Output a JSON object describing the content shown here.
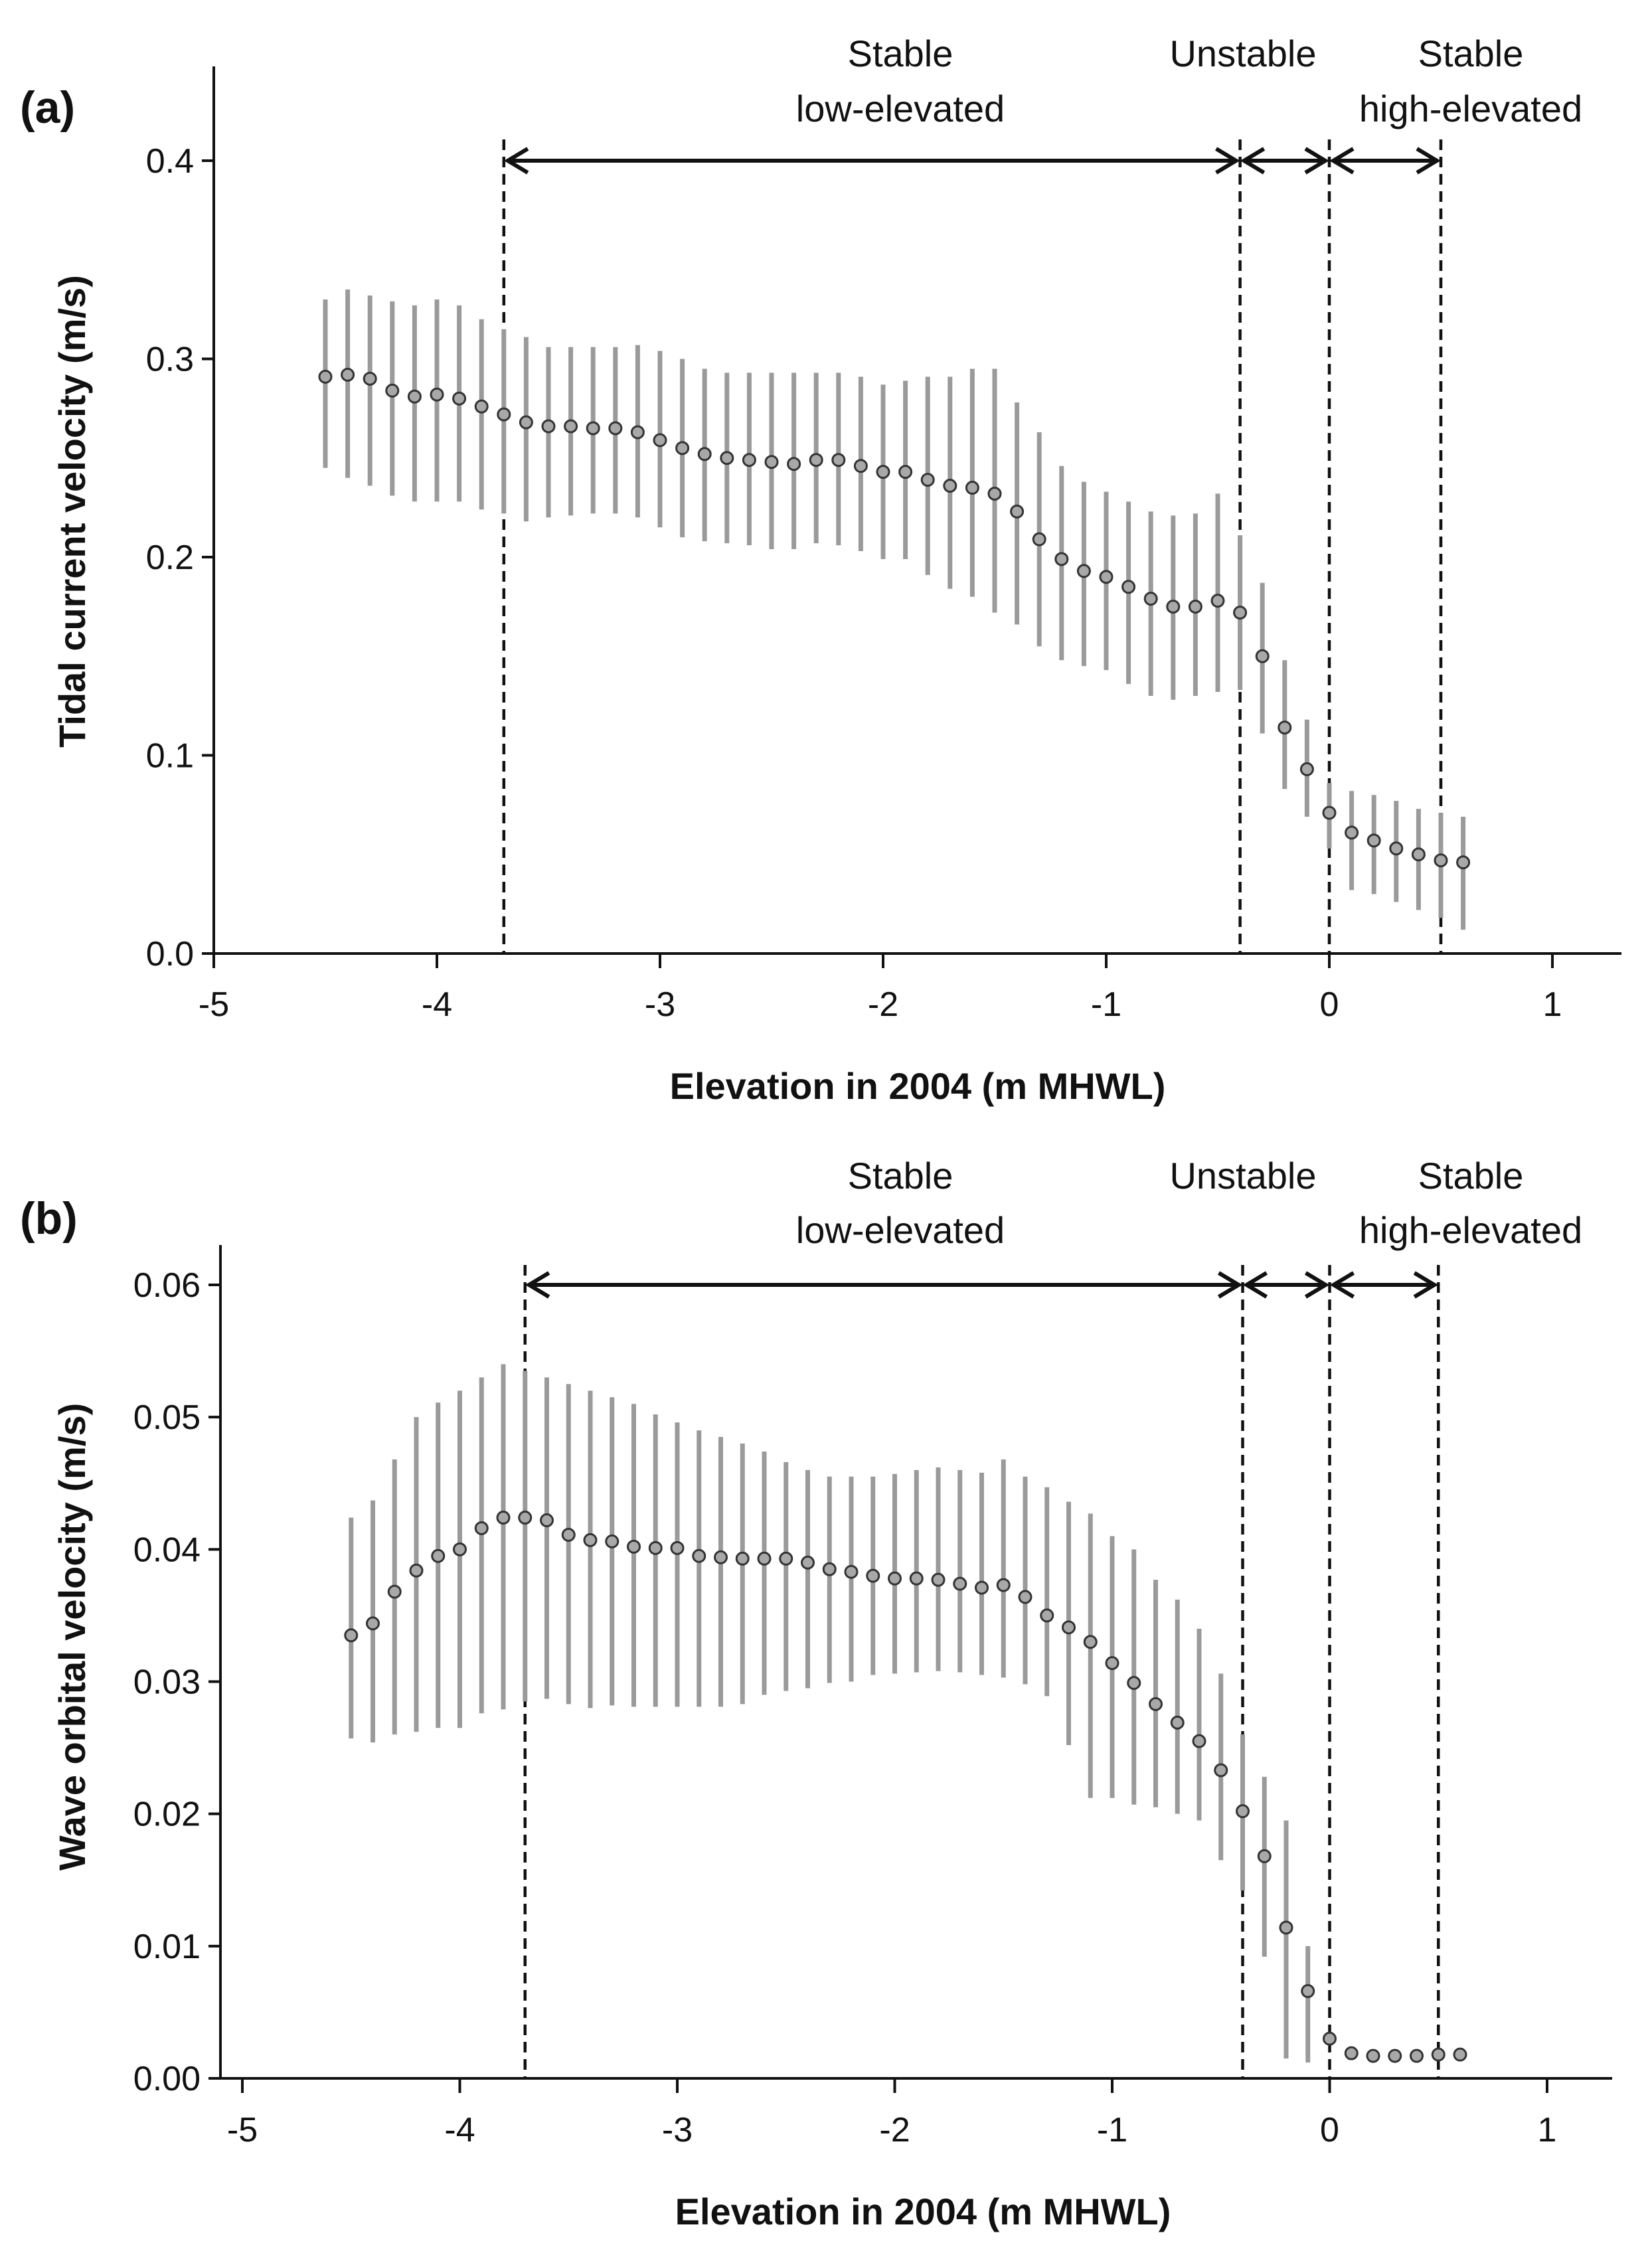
{
  "chart_data": [
    {
      "type": "scatter",
      "panel_label": "(a)",
      "xlabel": "Elevation in 2004 (m MHWL)",
      "ylabel": "Tidal current velocity (m/s)",
      "xlim": [
        -5,
        1.3
      ],
      "ylim": [
        0,
        0.44
      ],
      "x_ticks": [
        -5,
        -4,
        -3,
        -2,
        -1,
        0,
        1
      ],
      "x_tick_labels": [
        "-5",
        "-4",
        "-3",
        "-2",
        "-1",
        "0",
        "1"
      ],
      "y_ticks": [
        0,
        0.1,
        0.2,
        0.3,
        0.4
      ],
      "y_tick_labels": [
        "0.0",
        "0.1",
        "0.2",
        "0.3",
        "0.4"
      ],
      "boundaries": [
        -3.7,
        -0.4,
        0,
        0.5
      ],
      "regions": [
        {
          "label": "Stable\nlow-elevated",
          "from": -3.7,
          "to": -0.4
        },
        {
          "label": "Unstable",
          "from": -0.4,
          "to": 0
        },
        {
          "label": "Stable\nhigh-elevated",
          "from": 0,
          "to": 0.5
        }
      ],
      "x": [
        -4.5,
        -4.4,
        -4.3,
        -4.2,
        -4.1,
        -4.0,
        -3.9,
        -3.8,
        -3.7,
        -3.6,
        -3.5,
        -3.4,
        -3.3,
        -3.2,
        -3.1,
        -3.0,
        -2.9,
        -2.8,
        -2.7,
        -2.6,
        -2.5,
        -2.4,
        -2.3,
        -2.2,
        -2.1,
        -2.0,
        -1.9,
        -1.8,
        -1.7,
        -1.6,
        -1.5,
        -1.4,
        -1.3,
        -1.2,
        -1.1,
        -1.0,
        -0.9,
        -0.8,
        -0.7,
        -0.6,
        -0.5,
        -0.4,
        -0.3,
        -0.2,
        -0.1,
        0.0,
        0.1,
        0.2,
        0.3,
        0.4,
        0.5,
        0.6
      ],
      "mean": [
        0.291,
        0.292,
        0.29,
        0.284,
        0.281,
        0.282,
        0.28,
        0.276,
        0.272,
        0.268,
        0.266,
        0.266,
        0.265,
        0.265,
        0.263,
        0.259,
        0.255,
        0.252,
        0.25,
        0.249,
        0.248,
        0.247,
        0.249,
        0.249,
        0.246,
        0.243,
        0.243,
        0.239,
        0.236,
        0.235,
        0.232,
        0.223,
        0.209,
        0.199,
        0.193,
        0.19,
        0.185,
        0.179,
        0.175,
        0.175,
        0.178,
        0.172,
        0.15,
        0.114,
        0.093,
        0.071,
        0.061,
        0.057,
        0.053,
        0.05,
        0.047,
        0.046
      ],
      "upper": [
        0.33,
        0.335,
        0.332,
        0.329,
        0.327,
        0.33,
        0.327,
        0.32,
        0.315,
        0.311,
        0.306,
        0.306,
        0.306,
        0.306,
        0.307,
        0.304,
        0.3,
        0.295,
        0.293,
        0.293,
        0.293,
        0.293,
        0.293,
        0.293,
        0.291,
        0.287,
        0.289,
        0.291,
        0.291,
        0.295,
        0.295,
        0.278,
        0.263,
        0.246,
        0.238,
        0.233,
        0.228,
        0.223,
        0.221,
        0.222,
        0.232,
        0.211,
        0.187,
        0.148,
        0.118,
        0.086,
        0.082,
        0.08,
        0.077,
        0.073,
        0.071,
        0.069
      ],
      "lower": [
        0.245,
        0.24,
        0.236,
        0.231,
        0.228,
        0.228,
        0.228,
        0.224,
        0.222,
        0.218,
        0.22,
        0.221,
        0.222,
        0.222,
        0.22,
        0.215,
        0.21,
        0.208,
        0.207,
        0.206,
        0.204,
        0.204,
        0.207,
        0.206,
        0.203,
        0.199,
        0.199,
        0.191,
        0.184,
        0.18,
        0.172,
        0.166,
        0.155,
        0.148,
        0.145,
        0.143,
        0.136,
        0.13,
        0.128,
        0.13,
        0.132,
        0.133,
        0.111,
        0.083,
        0.069,
        0.053,
        0.032,
        0.03,
        0.026,
        0.022,
        0.018,
        0.012
      ]
    },
    {
      "type": "scatter",
      "panel_label": "(b)",
      "xlabel": "Elevation in 2004 (m MHWL)",
      "ylabel": "Wave orbital velocity (m/s)",
      "xlim": [
        -5,
        1.3
      ],
      "ylim": [
        0,
        0.066
      ],
      "x_ticks": [
        -5,
        -4,
        -3,
        -2,
        -1,
        0,
        1
      ],
      "x_tick_labels": [
        "-5",
        "-4",
        "-3",
        "-2",
        "-1",
        "0",
        "1"
      ],
      "y_ticks": [
        0,
        0.01,
        0.02,
        0.03,
        0.04,
        0.05,
        0.06
      ],
      "y_tick_labels": [
        "0.00",
        "0.01",
        "0.02",
        "0.03",
        "0.04",
        "0.05",
        "0.06"
      ],
      "boundaries": [
        -3.7,
        -0.4,
        0,
        0.5
      ],
      "regions": [
        {
          "label": "Stable\nlow-elevated",
          "from": -3.7,
          "to": -0.4
        },
        {
          "label": "Unstable",
          "from": -0.4,
          "to": 0
        },
        {
          "label": "Stable\nhigh-elevated",
          "from": 0,
          "to": 0.5
        }
      ],
      "x": [
        -4.5,
        -4.4,
        -4.3,
        -4.2,
        -4.1,
        -4.0,
        -3.9,
        -3.8,
        -3.7,
        -3.6,
        -3.5,
        -3.4,
        -3.3,
        -3.2,
        -3.1,
        -3.0,
        -2.9,
        -2.8,
        -2.7,
        -2.6,
        -2.5,
        -2.4,
        -2.3,
        -2.2,
        -2.1,
        -2.0,
        -1.9,
        -1.8,
        -1.7,
        -1.6,
        -1.5,
        -1.4,
        -1.3,
        -1.2,
        -1.1,
        -1.0,
        -0.9,
        -0.8,
        -0.7,
        -0.6,
        -0.5,
        -0.4,
        -0.3,
        -0.2,
        -0.1,
        0.0,
        0.1,
        0.2,
        0.3,
        0.4,
        0.5,
        0.6
      ],
      "mean": [
        0.0335,
        0.0344,
        0.0368,
        0.0384,
        0.0395,
        0.04,
        0.0416,
        0.0424,
        0.0424,
        0.0422,
        0.0411,
        0.0407,
        0.0406,
        0.0402,
        0.0401,
        0.0401,
        0.0395,
        0.0394,
        0.0393,
        0.0393,
        0.0393,
        0.039,
        0.0385,
        0.0383,
        0.038,
        0.0378,
        0.0378,
        0.0377,
        0.0374,
        0.0371,
        0.0373,
        0.0364,
        0.035,
        0.0341,
        0.033,
        0.0314,
        0.0299,
        0.0283,
        0.0269,
        0.0255,
        0.0233,
        0.0202,
        0.0168,
        0.0114,
        0.0066,
        0.003,
        0.0019,
        0.0017,
        0.0017,
        0.0017,
        0.0018,
        0.0018
      ],
      "upper": [
        0.0424,
        0.0437,
        0.0468,
        0.05,
        0.0511,
        0.052,
        0.053,
        0.054,
        0.0535,
        0.053,
        0.0525,
        0.052,
        0.0515,
        0.051,
        0.0502,
        0.0496,
        0.049,
        0.0485,
        0.048,
        0.0474,
        0.0466,
        0.046,
        0.0455,
        0.0455,
        0.0455,
        0.0457,
        0.046,
        0.0462,
        0.046,
        0.0458,
        0.0468,
        0.0455,
        0.0447,
        0.0436,
        0.0427,
        0.041,
        0.04,
        0.0377,
        0.0362,
        0.034,
        0.0306,
        0.026,
        0.0228,
        0.0195,
        0.01,
        0.0035,
        0.0022,
        0.002,
        0.002,
        0.002,
        0.0021,
        0.0021
      ],
      "lower": [
        0.0257,
        0.0254,
        0.026,
        0.0262,
        0.0265,
        0.0265,
        0.0276,
        0.0279,
        0.0285,
        0.0287,
        0.0283,
        0.028,
        0.0282,
        0.0281,
        0.0281,
        0.0281,
        0.0281,
        0.0281,
        0.0283,
        0.029,
        0.0293,
        0.0295,
        0.0299,
        0.03,
        0.0305,
        0.0306,
        0.0307,
        0.0308,
        0.0307,
        0.0305,
        0.0303,
        0.0298,
        0.0289,
        0.0252,
        0.0212,
        0.0212,
        0.0207,
        0.0205,
        0.02,
        0.0195,
        0.0165,
        0.0142,
        0.0092,
        0.0015,
        0.0012,
        0.0025,
        0.0016,
        0.0014,
        0.0014,
        0.0014,
        0.0015,
        0.0015
      ]
    }
  ]
}
